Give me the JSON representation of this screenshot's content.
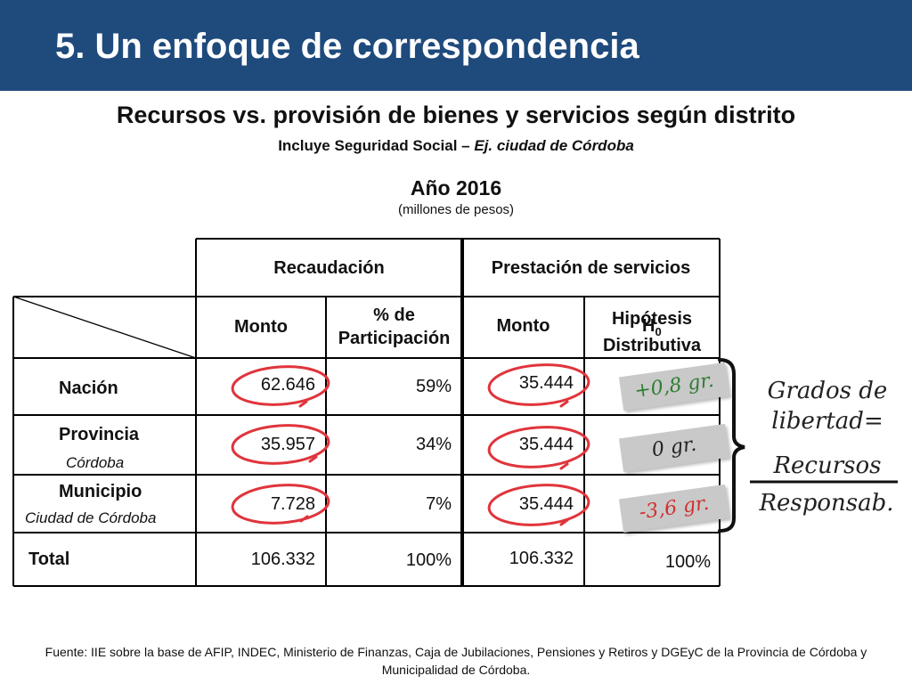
{
  "title": "5. Un enfoque de correspondencia",
  "subtitle": "Recursos vs. provisión de bienes y servicios según distrito",
  "subtitle2_prefix": "Incluye Seguridad Social – ",
  "subtitle2_italic": "Ej. ciudad de Córdoba",
  "year": "Año 2016",
  "units": "(millones de pesos)",
  "table": {
    "group_headers": [
      "Recaudación",
      "Prestación de servicios"
    ],
    "col_monto": "Monto",
    "col_part_1": "% de",
    "col_part_2": "Participación",
    "col_monto2": "Monto",
    "col_h_1": "Hipótesis",
    "col_h_overlay": "H",
    "col_h_sub": "0",
    "col_h_2": "Distributiva",
    "rows": [
      {
        "name": "Nación",
        "sub": "",
        "recaudacion": "62.646",
        "participacion": "59%",
        "prestacion": "35.444",
        "hipotesis": ""
      },
      {
        "name": "Provincia",
        "sub": "Córdoba",
        "recaudacion": "35.957",
        "participacion": "34%",
        "prestacion": "35.444",
        "hipotesis": ""
      },
      {
        "name": "Municipio",
        "sub": "Ciudad de Córdoba",
        "recaudacion": "7.728",
        "participacion": "7%",
        "prestacion": "35.444",
        "hipotesis": ""
      },
      {
        "name": "Total",
        "sub": "",
        "recaudacion": "106.332",
        "participacion": "100%",
        "prestacion": "106.332",
        "hipotesis": "100%"
      }
    ]
  },
  "annotations": {
    "nacion": "+0,8 gr.",
    "provincia": "0 gr.",
    "municipio": "-3,6 gr.",
    "grados_1": "Grados de",
    "grados_2": "libertad=",
    "recursos": "Recursos",
    "responsab": "Responsab."
  },
  "colors": {
    "header": "#1f4a7c",
    "circle": "#e0343c",
    "green": "#2e7d32",
    "red": "#d32f2f",
    "sticky": "#c9c9c9"
  },
  "footer": "Fuente: IIE sobre la base de AFIP, INDEC, Ministerio de Finanzas, Caja de Jubilaciones, Pensiones y Retiros y DGEyC de la Provincia de Córdoba y Municipalidad de Córdoba."
}
